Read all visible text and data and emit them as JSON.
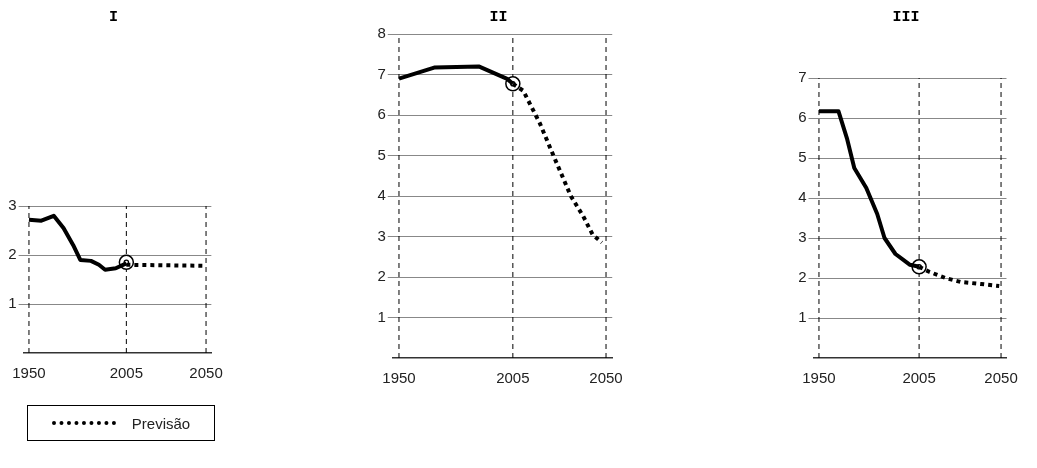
{
  "chart_data": [
    {
      "type": "line",
      "title": "I",
      "xlim": [
        1947,
        2053
      ],
      "xticks": [
        1950,
        2005,
        2050
      ],
      "ylim": [
        0,
        3
      ],
      "yticks": [
        1,
        2,
        3
      ],
      "grid": "y",
      "legend": "bottom",
      "marker": "none",
      "ref_lines": [
        {
          "axis": "x",
          "value": 1950,
          "line_style": "dashed"
        },
        {
          "axis": "x",
          "value": 2005,
          "line_style": "dashed"
        },
        {
          "axis": "x",
          "value": 2050,
          "line_style": "dashed"
        }
      ],
      "series": [
        {
          "color": "#000000",
          "line_style": "solid",
          "x": [
            1950,
            1957,
            1964,
            1969.5,
            1975,
            1979,
            1985,
            1989.5,
            1993,
            1999,
            2005
          ],
          "values": [
            2.72,
            2.7,
            2.8,
            2.55,
            2.2,
            1.9,
            1.88,
            1.8,
            1.7,
            1.73,
            1.83
          ]
        },
        {
          "name": "Previsão",
          "color": "#000000",
          "line_style": "dotted",
          "x": [
            2005,
            2050
          ],
          "values": [
            1.8,
            1.78
          ]
        },
        {
          "type": "scatter",
          "marker": "circle",
          "color": "#000000",
          "x": [
            2005
          ],
          "values": [
            1.85
          ]
        }
      ]
    },
    {
      "type": "line",
      "title": "II",
      "xlim": [
        1947,
        2053
      ],
      "xticks": [
        1950,
        2005,
        2050
      ],
      "ylim": [
        0,
        8
      ],
      "yticks": [
        1,
        2,
        3,
        4,
        5,
        6,
        7,
        8
      ],
      "grid": "y",
      "marker": "none",
      "ref_lines": [
        {
          "axis": "x",
          "value": 1950,
          "line_style": "dashed"
        },
        {
          "axis": "x",
          "value": 2005,
          "line_style": "dashed"
        },
        {
          "axis": "x",
          "value": 2050,
          "line_style": "dashed"
        }
      ],
      "series": [
        {
          "color": "#000000",
          "line_style": "solid",
          "x": [
            1950,
            1967,
            1988.5,
            2002,
            2005
          ],
          "values": [
            6.9,
            7.17,
            7.2,
            6.9,
            6.77
          ]
        },
        {
          "color": "#000000",
          "line_style": "dotted",
          "x": [
            2005,
            2010,
            2018,
            2025,
            2033,
            2039,
            2043.5,
            2048
          ],
          "values": [
            6.77,
            6.6,
            5.8,
            4.95,
            4.0,
            3.5,
            3.05,
            2.85
          ]
        },
        {
          "type": "scatter",
          "marker": "circle",
          "color": "#000000",
          "x": [
            2005
          ],
          "values": [
            6.77
          ]
        }
      ]
    },
    {
      "type": "line",
      "title": "III",
      "xlim": [
        1947,
        2053
      ],
      "xticks": [
        1950,
        2005,
        2050
      ],
      "ylim": [
        0,
        7
      ],
      "yticks": [
        1,
        2,
        3,
        4,
        5,
        6,
        7
      ],
      "grid": "y",
      "marker": "none",
      "ref_lines": [
        {
          "axis": "x",
          "value": 1950,
          "line_style": "dashed"
        },
        {
          "axis": "x",
          "value": 2005,
          "line_style": "dashed"
        },
        {
          "axis": "x",
          "value": 2050,
          "line_style": "dashed"
        }
      ],
      "series": [
        {
          "color": "#000000",
          "line_style": "solid",
          "x": [
            1950,
            1960.7,
            1965.5,
            1969.4,
            1976,
            1982,
            1986,
            1992,
            2000,
            2005
          ],
          "values": [
            6.17,
            6.17,
            5.47,
            4.75,
            4.25,
            3.6,
            3.0,
            2.6,
            2.33,
            2.28
          ]
        },
        {
          "color": "#000000",
          "line_style": "dotted",
          "x": [
            2005,
            2010.8,
            2019.5,
            2028,
            2039,
            2049
          ],
          "values": [
            2.28,
            2.15,
            2.0,
            1.9,
            1.85,
            1.8
          ]
        },
        {
          "type": "scatter",
          "marker": "circle",
          "color": "#000000",
          "x": [
            2005
          ],
          "values": [
            2.28
          ]
        }
      ]
    }
  ]
}
